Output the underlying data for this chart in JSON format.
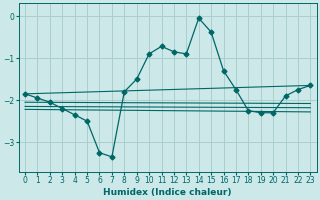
{
  "xlabel": "Humidex (Indice chaleur)",
  "ylabel": "",
  "bg_color": "#cce8e8",
  "grid_color": "#aacece",
  "line_color": "#006666",
  "xlim": [
    -0.5,
    23.5
  ],
  "ylim": [
    -3.7,
    0.3
  ],
  "yticks": [
    0,
    -1,
    -2,
    -3
  ],
  "xticks": [
    0,
    1,
    2,
    3,
    4,
    5,
    6,
    7,
    8,
    9,
    10,
    11,
    12,
    13,
    14,
    15,
    16,
    17,
    18,
    19,
    20,
    21,
    22,
    23
  ],
  "series": [
    {
      "x": [
        0,
        1,
        2,
        3,
        4,
        5,
        6,
        7,
        8,
        9,
        10,
        11,
        12,
        13,
        14,
        15,
        16,
        17,
        18,
        19,
        20,
        21,
        22,
        23
      ],
      "y": [
        -1.85,
        -1.95,
        -2.05,
        -2.2,
        -2.35,
        -2.5,
        -3.25,
        -3.35,
        -1.8,
        -1.5,
        -0.9,
        -0.72,
        -0.85,
        -0.9,
        -0.05,
        -0.38,
        -1.3,
        -1.75,
        -2.25,
        -2.3,
        -2.3,
        -1.9,
        -1.75,
        -1.65
      ],
      "marker": "D",
      "marker_size": 2.5,
      "lw": 0.9
    },
    {
      "x": [
        0,
        23
      ],
      "y": [
        -1.85,
        -1.65
      ],
      "marker": null,
      "lw": 0.8
    },
    {
      "x": [
        0,
        23
      ],
      "y": [
        -2.05,
        -2.08
      ],
      "marker": null,
      "lw": 0.8
    },
    {
      "x": [
        0,
        23
      ],
      "y": [
        -2.15,
        -2.18
      ],
      "marker": null,
      "lw": 0.8
    },
    {
      "x": [
        0,
        23
      ],
      "y": [
        -2.22,
        -2.28
      ],
      "marker": null,
      "lw": 0.8
    }
  ]
}
